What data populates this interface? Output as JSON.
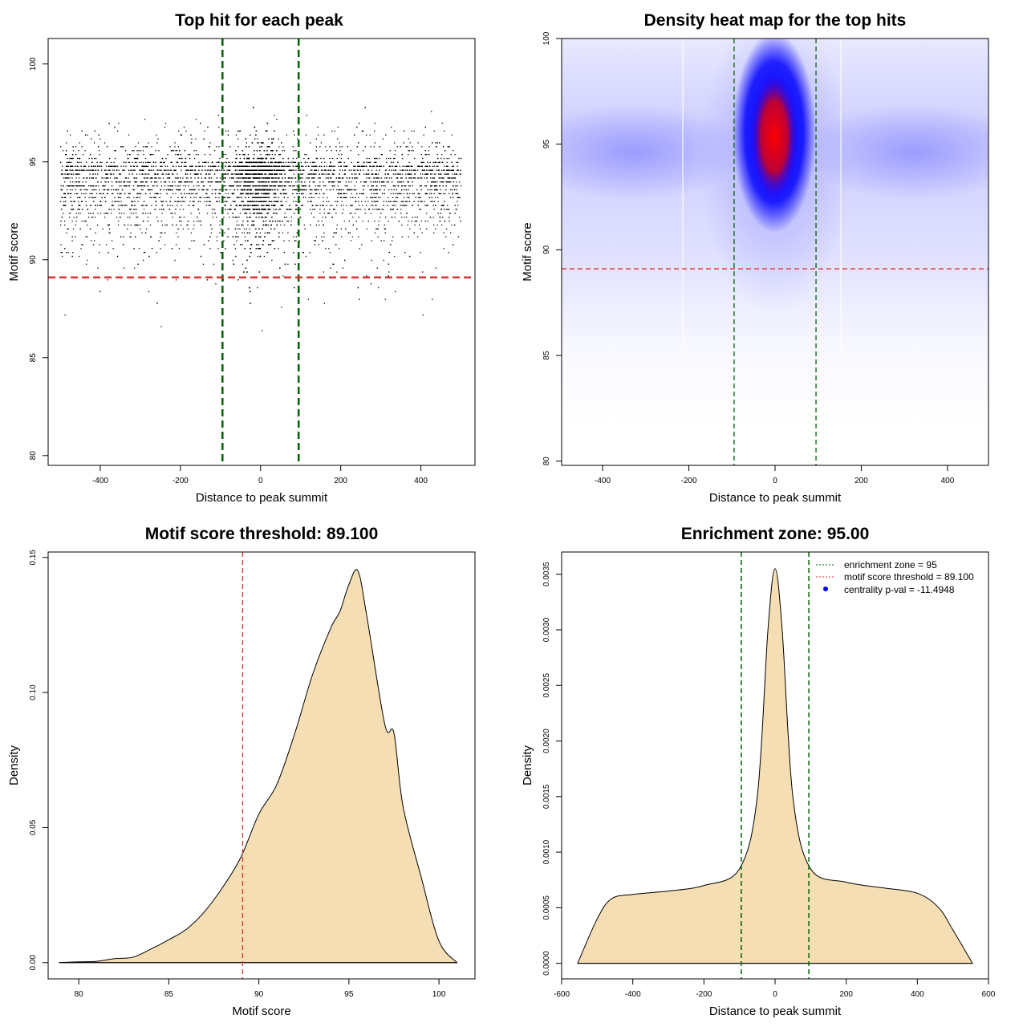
{
  "chart_data": [
    {
      "type": "scatter",
      "title": "Top hit for each peak",
      "xlabel": "Distance to peak summit",
      "ylabel": "Motif score",
      "xlim": [
        -530,
        535
      ],
      "ylim": [
        79.5,
        101.3
      ],
      "xticks": [
        -400,
        -200,
        0,
        200,
        400
      ],
      "yticks": [
        80,
        85,
        90,
        95,
        100
      ],
      "xtick_labels": [
        "-400",
        "-200",
        "0",
        "200",
        "400"
      ],
      "ytick_labels": [
        "80",
        "85",
        "90",
        "95",
        "100"
      ],
      "hlines": [
        {
          "y": 89.1,
          "color": "#dd3333",
          "style": "dashed"
        }
      ],
      "vlines": [
        {
          "x": -95,
          "color": "#006400",
          "style": "dashed"
        },
        {
          "x": 95,
          "color": "#006400",
          "style": "dashed"
        }
      ],
      "point_color": "#000000",
      "distribution": {
        "x_range": [
          -500,
          500
        ],
        "score_range": [
          79.8,
          100
        ],
        "central_peak": {
          "x": 0,
          "spread": 45,
          "score_mode": 95
        }
      }
    },
    {
      "type": "heatmap",
      "title": "Density heat map for the top hits",
      "xlabel": "Distance to peak summit",
      "ylabel": "Motif score",
      "xlim": [
        -495,
        495
      ],
      "ylim": [
        79.8,
        100
      ],
      "xticks": [
        -400,
        -200,
        0,
        200,
        400
      ],
      "yticks": [
        80,
        85,
        90,
        95,
        100
      ],
      "xtick_labels": [
        "-400",
        "-200",
        "0",
        "200",
        "400"
      ],
      "ytick_labels": [
        "80",
        "85",
        "90",
        "95",
        "100"
      ],
      "hlines": [
        {
          "y": 89.1,
          "color": "#dd3333",
          "style": "dashed"
        }
      ],
      "vlines": [
        {
          "x": -95,
          "color": "#006400",
          "style": "dashed"
        },
        {
          "x": 95,
          "color": "#006400",
          "style": "dashed"
        }
      ],
      "colors": [
        "#ffffff",
        "#0000ff",
        "#ff0000"
      ],
      "peak": {
        "x": 0,
        "y": 95.2
      }
    },
    {
      "type": "area",
      "title": "Motif score threshold: 89.100",
      "xlabel": "Motif score",
      "ylabel": "Density",
      "xlim": [
        78.3,
        102.0
      ],
      "ylim": [
        -0.006,
        0.152
      ],
      "xticks": [
        80,
        85,
        90,
        95,
        100
      ],
      "yticks": [
        0.0,
        0.05,
        0.1,
        0.15
      ],
      "xtick_labels": [
        "80",
        "85",
        "90",
        "95",
        "100"
      ],
      "ytick_labels": [
        "0.00",
        "0.05",
        "0.10",
        "0.15"
      ],
      "fill": "#f5deb3",
      "vlines": [
        {
          "x": 89.1,
          "color": "#dd3333",
          "style": "dashed"
        }
      ],
      "x": [
        78.9,
        80,
        81,
        82,
        83,
        84,
        85,
        86,
        87,
        88,
        89,
        90,
        91,
        92,
        93,
        94,
        94.5,
        95,
        95.5,
        96,
        97,
        97.5,
        98,
        99,
        100,
        101
      ],
      "y": [
        0,
        0.0003,
        0.0005,
        0.0015,
        0.002,
        0.005,
        0.0085,
        0.0125,
        0.019,
        0.028,
        0.039,
        0.055,
        0.066,
        0.085,
        0.107,
        0.124,
        0.13,
        0.14,
        0.145,
        0.128,
        0.088,
        0.085,
        0.058,
        0.032,
        0.008,
        0
      ]
    },
    {
      "type": "area",
      "title": "Enrichment zone: 95.00",
      "xlabel": "Distance to peak summit",
      "ylabel": "Density",
      "xlim": [
        -600,
        600
      ],
      "ylim": [
        -0.00014,
        0.0037
      ],
      "xticks": [
        -600,
        -400,
        -200,
        0,
        200,
        400,
        600
      ],
      "yticks": [
        0.0,
        0.0005,
        0.001,
        0.0015,
        0.002,
        0.0025,
        0.003,
        0.0035
      ],
      "xtick_labels": [
        "-600",
        "-400",
        "-200",
        "0",
        "200",
        "400",
        "600"
      ],
      "ytick_labels": [
        "0.0000",
        "0.0005",
        "0.0010",
        "0.0015",
        "0.0020",
        "0.0025",
        "0.0030",
        "0.0035"
      ],
      "fill": "#f5deb3",
      "vlines": [
        {
          "x": -95,
          "color": "#006400",
          "style": "dashed"
        },
        {
          "x": 95,
          "color": "#006400",
          "style": "dashed"
        }
      ],
      "x": [
        -555,
        -500,
        -460,
        -400,
        -300,
        -200,
        -100,
        -50,
        -20,
        0,
        20,
        50,
        100,
        200,
        300,
        400,
        460,
        500,
        555
      ],
      "y": [
        0,
        0.0004,
        0.00058,
        0.00062,
        0.00065,
        0.0007,
        0.00085,
        0.0015,
        0.003,
        0.00355,
        0.003,
        0.0015,
        0.00085,
        0.00073,
        0.00068,
        0.00063,
        0.0005,
        0.0003,
        0
      ],
      "legend": [
        {
          "label": "enrichment zone = 95",
          "color": "#006400",
          "kind": "line"
        },
        {
          "label": "motif score threshold = 89.100",
          "color": "#dd3333",
          "kind": "line"
        },
        {
          "label": "centrality p-val = -11.4948",
          "color": "#0000ff",
          "kind": "point"
        }
      ],
      "legend_position": "top-right"
    }
  ]
}
